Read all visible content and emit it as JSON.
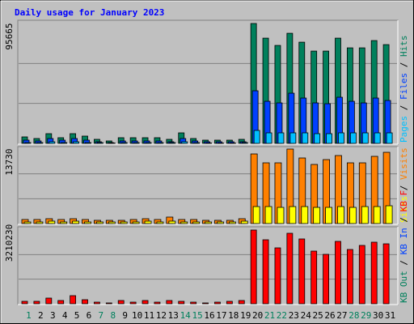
{
  "chart_data": {
    "type": "bar",
    "title": "Daily usage for January 2023",
    "categories": [
      "1",
      "2",
      "3",
      "4",
      "5",
      "6",
      "7",
      "8",
      "9",
      "10",
      "11",
      "12",
      "13",
      "14",
      "15",
      "16",
      "17",
      "18",
      "19",
      "20",
      "21",
      "22",
      "23",
      "24",
      "25",
      "26",
      "27",
      "28",
      "29",
      "30",
      "31"
    ],
    "highlight": [
      0,
      6,
      7,
      13,
      14,
      20,
      21,
      27,
      28
    ],
    "highlight_color": "#00805c",
    "panels": [
      {
        "ylim": [
          0,
          95665
        ],
        "yticks": [
          95665
        ],
        "series": [
          {
            "name": "Hits",
            "color": "#00805c",
            "values": [
              5168,
              3876,
              7752,
              4522,
              7752,
              5814,
              3230,
              1938,
              4522,
              4522,
              4522,
              4522,
              3230,
              8398,
              3876,
              2584,
              2584,
              2584,
              3230,
              95665,
              83980,
              78166,
              87856,
              80750,
              73644,
              73644,
              83980,
              76228,
              76228,
              82042,
              78812
            ]
          },
          {
            "name": "Files",
            "color": "#0040ff",
            "values": [
              2584,
              1938,
              3876,
              2584,
              3876,
              2584,
              1292,
              646,
              1938,
              1938,
              1938,
              1938,
              1292,
              3876,
              1938,
              1292,
              1292,
              1292,
              1292,
              41990,
              33592,
              32300,
              40052,
              36176,
              32300,
              31654,
              36822,
              33592,
              32300,
              36176,
              34238
            ]
          },
          {
            "name": "Pages",
            "color": "#00c0ff",
            "values": [
              646,
              646,
              1292,
              646,
              1292,
              646,
              646,
              323,
              646,
              646,
              646,
              646,
              646,
              1292,
              646,
              323,
              323,
              323,
              646,
              10336,
              8398,
              8398,
              8398,
              8398,
              7752,
              7752,
              8398,
              8398,
              8398,
              8398,
              8398
            ]
          }
        ]
      },
      {
        "ylim": [
          0,
          13730
        ],
        "yticks": [
          13730
        ],
        "series": [
          {
            "name": "Visits",
            "color": "#ff8000",
            "values": [
              746,
              746,
              895,
              746,
              895,
              746,
              597,
              597,
              597,
              746,
              895,
              746,
              1194,
              746,
              746,
              597,
              597,
              597,
              895,
              12831,
              11190,
              11190,
              13730,
              12085,
              10892,
              11787,
              12533,
              11190,
              11190,
              12384,
              13130
            ]
          },
          {
            "name": "Sites",
            "color": "#ffff00",
            "values": [
              298,
              298,
              448,
              298,
              448,
              298,
              298,
              298,
              298,
              298,
              448,
              298,
              448,
              298,
              298,
              298,
              298,
              298,
              448,
              3133,
              3133,
              2984,
              3133,
              3133,
              2984,
              2984,
              3133,
              2984,
              3133,
              3133,
              3282
            ]
          }
        ]
      },
      {
        "ylim": [
          0,
          3210230
        ],
        "yticks": [
          3210230
        ],
        "series": [
          {
            "name": "KB F",
            "color": "#ff0000",
            "values": [
              105831,
              105831,
              246939,
              141108,
              352770,
              176385,
              70554,
              35277,
              141108,
              70554,
              141108,
              70554,
              141108,
              105831,
              70554,
              35277,
              70554,
              105831,
              141108,
              3210230,
              2786883,
              2434113,
              3069099,
              2822160,
              2293005,
              2151897,
              2716329,
              2363559,
              2539944,
              2681052,
              2610498
            ]
          },
          {
            "name": "KB In",
            "color": "#0040ff",
            "values": [
              null,
              null,
              null,
              null,
              null,
              null,
              null,
              null,
              null,
              null,
              null,
              null,
              null,
              null,
              null,
              null,
              null,
              null,
              null,
              null,
              null,
              null,
              null,
              null,
              null,
              null,
              null,
              null,
              null,
              null,
              null
            ]
          },
          {
            "name": "KB Out",
            "color": "#00805c",
            "values": [
              null,
              null,
              null,
              null,
              null,
              null,
              null,
              null,
              null,
              null,
              null,
              null,
              null,
              null,
              null,
              null,
              null,
              null,
              null,
              null,
              null,
              null,
              null,
              null,
              null,
              null,
              null,
              null,
              null,
              null,
              null
            ]
          }
        ]
      }
    ]
  }
}
